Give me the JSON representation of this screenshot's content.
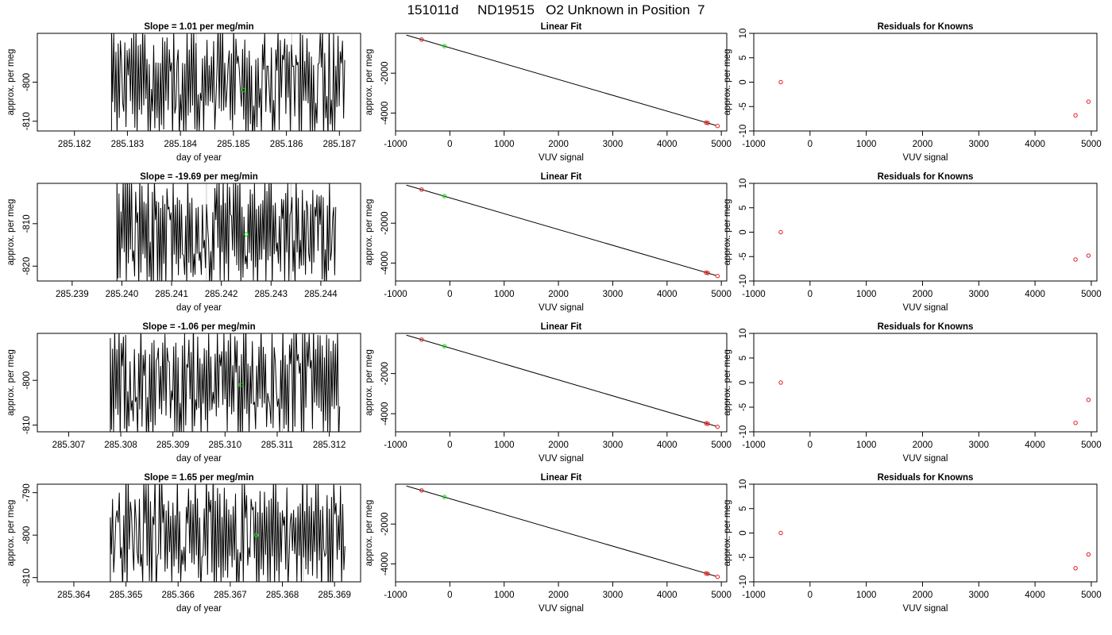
{
  "page_title": "151011d     ND19515   O2 Unknown in Position  7",
  "colors": {
    "trace": "#000000",
    "known_point": "#e41a1c",
    "unknown_point": "#00e000",
    "refline": "#c8c8c8"
  },
  "chart_data": [
    {
      "type": "line",
      "title": "Slope =  1.01  per meg/min",
      "xlabel": "day of year",
      "ylabel": "approx. per meg",
      "xlim": [
        285.1813,
        285.1874
      ],
      "ylim": [
        -812.5,
        -787.5
      ],
      "xticks": [
        "285.182",
        "285.183",
        "285.184",
        "285.185",
        "285.186",
        "285.187"
      ],
      "yticks": [
        "-800",
        "-810"
      ],
      "x_start": 285.1827,
      "x_end": 285.1871,
      "seed": 11,
      "refs": [
        285.1843,
        285.1861
      ],
      "marker": {
        "x": 285.1852,
        "y": -802
      }
    },
    {
      "type": "line",
      "title": "Slope =  -19.69  per meg/min",
      "xlabel": "day of year",
      "ylabel": "approx. per meg",
      "xlim": [
        285.2383,
        285.2448
      ],
      "ylim": [
        -823.5,
        -800.5
      ],
      "xticks": [
        "285.239",
        "285.240",
        "285.241",
        "285.242",
        "285.243",
        "285.244"
      ],
      "yticks": [
        "-810",
        "-820"
      ],
      "x_start": 285.2399,
      "x_end": 285.2443,
      "seed": 23,
      "refs": [
        285.2417,
        285.2434
      ],
      "marker": {
        "x": 285.2425,
        "y": -812.5
      }
    },
    {
      "type": "line",
      "title": "Slope =  -1.06  per meg/min",
      "xlabel": "day of year",
      "ylabel": "approx. per meg",
      "xlim": [
        285.3064,
        285.3126
      ],
      "ylim": [
        -811.5,
        -789.5
      ],
      "xticks": [
        "285.307",
        "285.308",
        "285.309",
        "285.310",
        "285.311",
        "285.312"
      ],
      "yticks": [
        "-800",
        "-810"
      ],
      "x_start": 285.3078,
      "x_end": 285.3122,
      "seed": 37,
      "refs": [
        285.3094,
        285.3111
      ],
      "marker": {
        "x": 285.3103,
        "y": -801
      }
    },
    {
      "type": "line",
      "title": "Slope =  1.65  per meg/min",
      "xlabel": "day of year",
      "ylabel": "approx. per meg",
      "xlim": [
        285.3633,
        285.3695
      ],
      "ylim": [
        -811,
        -788
      ],
      "xticks": [
        "285.364",
        "285.365",
        "285.366",
        "285.367",
        "285.368",
        "285.369"
      ],
      "yticks": [
        "-790",
        "-800",
        "-810"
      ],
      "x_start": 285.3647,
      "x_end": 285.3692,
      "seed": 53,
      "refs": [
        285.3667,
        285.3684
      ],
      "marker": {
        "x": 285.3675,
        "y": -800
      }
    },
    {
      "type": "scatter",
      "title": "Linear Fit",
      "xlabel": "VUV signal",
      "ylabel": "approx. per meg",
      "xlim": [
        -1000,
        5100
      ],
      "ylim": [
        -4900,
        0
      ],
      "xticks": [
        "-1000",
        "0",
        "1000",
        "2000",
        "3000",
        "4000",
        "5000"
      ],
      "yticks": [
        "-2000",
        "-4000"
      ],
      "fit_line": [
        [
          -800,
          -90
        ],
        [
          4900,
          -4620
        ]
      ],
      "known_points": [
        [
          -520,
          -310
        ],
        [
          4720,
          -4480
        ],
        [
          4750,
          -4500
        ],
        [
          4930,
          -4650
        ]
      ],
      "unknown_points": [
        [
          -100,
          -640
        ]
      ]
    },
    {
      "type": "scatter",
      "title": "Linear Fit",
      "xlabel": "VUV signal",
      "ylabel": "approx. per meg",
      "xlim": [
        -1000,
        5100
      ],
      "ylim": [
        -4900,
        0
      ],
      "xticks": [
        "-1000",
        "0",
        "1000",
        "2000",
        "3000",
        "4000",
        "5000"
      ],
      "yticks": [
        "-2000",
        "-4000"
      ],
      "fit_line": [
        [
          -800,
          -90
        ],
        [
          4900,
          -4620
        ]
      ],
      "known_points": [
        [
          -520,
          -310
        ],
        [
          4720,
          -4480
        ],
        [
          4750,
          -4500
        ],
        [
          4930,
          -4650
        ]
      ],
      "unknown_points": [
        [
          -100,
          -640
        ]
      ]
    },
    {
      "type": "scatter",
      "title": "Linear Fit",
      "xlabel": "VUV signal",
      "ylabel": "approx. per meg",
      "xlim": [
        -1000,
        5100
      ],
      "ylim": [
        -4900,
        0
      ],
      "xticks": [
        "-1000",
        "0",
        "1000",
        "2000",
        "3000",
        "4000",
        "5000"
      ],
      "yticks": [
        "-2000",
        "-4000"
      ],
      "fit_line": [
        [
          -800,
          -90
        ],
        [
          4900,
          -4620
        ]
      ],
      "known_points": [
        [
          -520,
          -310
        ],
        [
          4720,
          -4480
        ],
        [
          4750,
          -4500
        ],
        [
          4930,
          -4650
        ]
      ],
      "unknown_points": [
        [
          -100,
          -640
        ]
      ]
    },
    {
      "type": "scatter",
      "title": "Linear Fit",
      "xlabel": "VUV signal",
      "ylabel": "approx. per meg",
      "xlim": [
        -1000,
        5100
      ],
      "ylim": [
        -4900,
        0
      ],
      "xticks": [
        "-1000",
        "0",
        "1000",
        "2000",
        "3000",
        "4000",
        "5000"
      ],
      "yticks": [
        "-2000",
        "-4000"
      ],
      "fit_line": [
        [
          -800,
          -90
        ],
        [
          4900,
          -4620
        ]
      ],
      "known_points": [
        [
          -520,
          -310
        ],
        [
          4720,
          -4480
        ],
        [
          4750,
          -4500
        ],
        [
          4930,
          -4650
        ]
      ],
      "unknown_points": [
        [
          -100,
          -640
        ]
      ]
    },
    {
      "type": "scatter",
      "title": "Residuals for Knowns",
      "xlabel": "VUV signal",
      "ylabel": "approx. per meg",
      "xlim": [
        -1000,
        5100
      ],
      "ylim": [
        -10,
        10
      ],
      "xticks": [
        "-1000",
        "0",
        "1000",
        "2000",
        "3000",
        "4000",
        "5000"
      ],
      "yticks": [
        "-10",
        "-5",
        "0",
        "5",
        "10"
      ],
      "known_points": [
        [
          -520,
          0
        ],
        [
          4720,
          -6.8
        ],
        [
          4950,
          -4
        ]
      ]
    },
    {
      "type": "scatter",
      "title": "Residuals for Knowns",
      "xlabel": "VUV signal",
      "ylabel": "approx. per meg",
      "xlim": [
        -1000,
        5100
      ],
      "ylim": [
        -10,
        10
      ],
      "xticks": [
        "-1000",
        "0",
        "1000",
        "2000",
        "3000",
        "4000",
        "5000"
      ],
      "yticks": [
        "-10",
        "-5",
        "0",
        "5",
        "10"
      ],
      "known_points": [
        [
          -520,
          0
        ],
        [
          4720,
          -5.6
        ],
        [
          4950,
          -4.8
        ]
      ]
    },
    {
      "type": "scatter",
      "title": "Residuals for Knowns",
      "xlabel": "VUV signal",
      "ylabel": "approx. per meg",
      "xlim": [
        -1000,
        5100
      ],
      "ylim": [
        -10,
        10
      ],
      "xticks": [
        "-1000",
        "0",
        "1000",
        "2000",
        "3000",
        "4000",
        "5000"
      ],
      "yticks": [
        "-10",
        "-5",
        "0",
        "5",
        "10"
      ],
      "known_points": [
        [
          -520,
          0
        ],
        [
          4720,
          -8.2
        ],
        [
          4950,
          -3.5
        ]
      ]
    },
    {
      "type": "scatter",
      "title": "Residuals for Knowns",
      "xlabel": "VUV signal",
      "ylabel": "approx. per meg",
      "xlim": [
        -1000,
        5100
      ],
      "ylim": [
        -10,
        10
      ],
      "xticks": [
        "-1000",
        "0",
        "1000",
        "2000",
        "3000",
        "4000",
        "5000"
      ],
      "yticks": [
        "-10",
        "-5",
        "0",
        "5",
        "10"
      ],
      "known_points": [
        [
          -520,
          0
        ],
        [
          4720,
          -7.2
        ],
        [
          4950,
          -4.4
        ]
      ]
    }
  ]
}
